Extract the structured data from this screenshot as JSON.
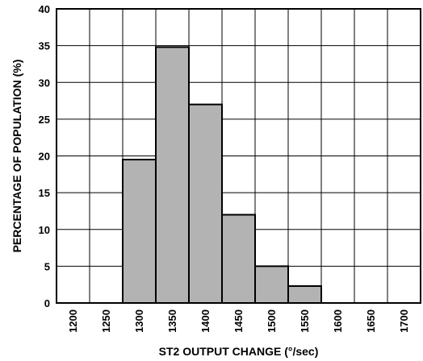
{
  "chart_data": {
    "type": "bar",
    "xlabel": "ST2 OUTPUT CHANGE (°/sec)",
    "ylabel": "PERCENTAGE OF POPULATION (%)",
    "ylim": [
      0,
      40
    ],
    "xlim": [
      1175,
      1725
    ],
    "yticks": [
      "0",
      "5",
      "10",
      "15",
      "20",
      "25",
      "30",
      "35",
      "40"
    ],
    "xticks": [
      "1200",
      "1250",
      "1300",
      "1350",
      "1400",
      "1450",
      "1500",
      "1550",
      "1600",
      "1650",
      "1700"
    ],
    "grid": true,
    "bar_color": "#b3b3b3",
    "bins": [
      {
        "start": 1275,
        "end": 1325,
        "value": 19.5
      },
      {
        "start": 1325,
        "end": 1375,
        "value": 34.8
      },
      {
        "start": 1375,
        "end": 1425,
        "value": 27.0
      },
      {
        "start": 1425,
        "end": 1475,
        "value": 12.0
      },
      {
        "start": 1475,
        "end": 1525,
        "value": 5.0
      },
      {
        "start": 1525,
        "end": 1575,
        "value": 2.3
      }
    ]
  }
}
